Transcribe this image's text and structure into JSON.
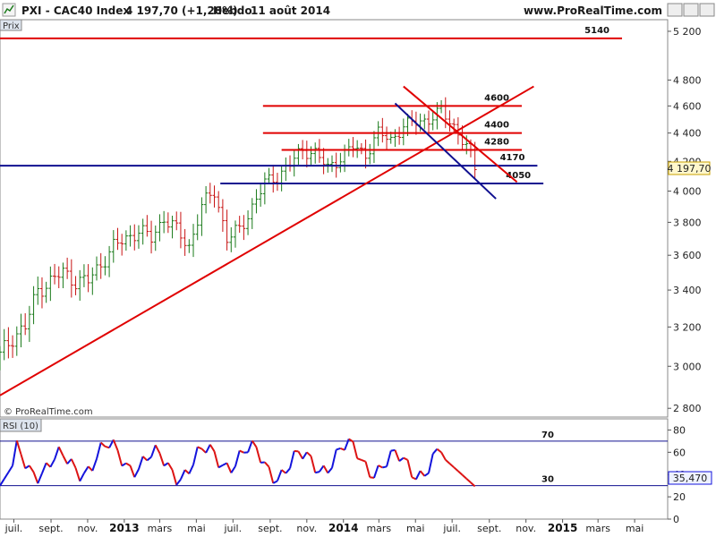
{
  "header": {
    "symbol": "PXI - CAC40 Index",
    "last": "4 197,70 (+1,20%)",
    "period": "Hebdo",
    "date": "11 août 2014",
    "source": "www.ProRealTime.com"
  },
  "watermark": "© ProRealTime.com",
  "price_panel": {
    "label": "Prix",
    "last_value": "4 197,70"
  },
  "rsi_panel": {
    "label": "RSI (10)",
    "last_value": "35,470"
  },
  "colors": {
    "up": "#1a7a1a",
    "down": "#c81414",
    "support": "#e00000",
    "blue": "#101090",
    "rsi_up": "#1414dc",
    "rsi_down": "#dc1414"
  },
  "chart_data": [
    {
      "type": "candlestick",
      "series": [
        {
          "name": "PXI - CAC40 Index"
        }
      ],
      "y_axis": {
        "ticks": [
          "2 800",
          "3 000",
          "3 200",
          "3 400",
          "3 600",
          "3 800",
          "4 000",
          "4 200",
          "4 400",
          "4 600",
          "4 800",
          "5 200"
        ],
        "scale": "log",
        "range": [
          2760,
          5300
        ]
      },
      "x_axis": {
        "ticks": [
          {
            "label": "juil.",
            "date": "2012-07-01"
          },
          {
            "label": "sept.",
            "date": "2012-09-01"
          },
          {
            "label": "nov.",
            "date": "2012-11-01"
          },
          {
            "label": "2013",
            "date": "2013-01-01",
            "bold": true
          },
          {
            "label": "mars",
            "date": "2013-03-01"
          },
          {
            "label": "mai",
            "date": "2013-05-01"
          },
          {
            "label": "juil.",
            "date": "2013-07-01"
          },
          {
            "label": "sept.",
            "date": "2013-09-01"
          },
          {
            "label": "nov.",
            "date": "2013-11-01"
          },
          {
            "label": "2014",
            "date": "2014-01-01",
            "bold": true
          },
          {
            "label": "mars",
            "date": "2014-03-01"
          },
          {
            "label": "mai",
            "date": "2014-05-01"
          },
          {
            "label": "juil.",
            "date": "2014-07-01"
          },
          {
            "label": "sept.",
            "date": "2014-09-01"
          },
          {
            "label": "nov.",
            "date": "2014-11-01"
          },
          {
            "label": "2015",
            "date": "2015-01-01",
            "bold": true
          },
          {
            "label": "mars",
            "date": "2015-03-01"
          },
          {
            "label": "mai",
            "date": "2015-05-01"
          }
        ],
        "range": [
          "2012-06-08",
          "2015-06-25"
        ]
      },
      "weekly_close_approx": [
        [
          "2012-06-08",
          3050
        ],
        [
          "2012-06-29",
          3150
        ],
        [
          "2012-07-20",
          3200
        ],
        [
          "2012-08-10",
          3400
        ],
        [
          "2012-08-31",
          3450
        ],
        [
          "2012-09-21",
          3500
        ],
        [
          "2012-10-12",
          3450
        ],
        [
          "2012-11-02",
          3450
        ],
        [
          "2012-11-23",
          3550
        ],
        [
          "2012-12-14",
          3650
        ],
        [
          "2013-01-04",
          3700
        ],
        [
          "2013-01-25",
          3750
        ],
        [
          "2013-02-15",
          3700
        ],
        [
          "2013-03-08",
          3830
        ],
        [
          "2013-03-29",
          3750
        ],
        [
          "2013-04-19",
          3650
        ],
        [
          "2013-05-10",
          3900
        ],
        [
          "2013-05-31",
          4000
        ],
        [
          "2013-06-21",
          3700
        ],
        [
          "2013-07-12",
          3750
        ],
        [
          "2013-08-02",
          3900
        ],
        [
          "2013-08-23",
          4050
        ],
        [
          "2013-09-13",
          4100
        ],
        [
          "2013-10-04",
          4180
        ],
        [
          "2013-10-25",
          4280
        ],
        [
          "2013-11-15",
          4260
        ],
        [
          "2013-12-06",
          4150
        ],
        [
          "2013-12-27",
          4230
        ],
        [
          "2014-01-17",
          4300
        ],
        [
          "2014-02-07",
          4250
        ],
        [
          "2014-02-28",
          4400
        ],
        [
          "2014-03-21",
          4350
        ],
        [
          "2014-04-11",
          4450
        ],
        [
          "2014-05-02",
          4480
        ],
        [
          "2014-05-23",
          4500
        ],
        [
          "2014-06-13",
          4560
        ],
        [
          "2014-07-04",
          4450
        ],
        [
          "2014-07-25",
          4300
        ],
        [
          "2014-08-08",
          4150
        ],
        [
          "2014-08-11",
          4197.7
        ]
      ],
      "levels": [
        {
          "label": "5140",
          "value": 5140,
          "color": "red"
        },
        {
          "label": "4600",
          "value": 4600,
          "color": "red"
        },
        {
          "label": "4400",
          "value": 4400,
          "color": "red"
        },
        {
          "label": "4280",
          "value": 4280,
          "color": "red"
        },
        {
          "label": "4170",
          "value": 4170,
          "color": "blue"
        },
        {
          "label": "4050",
          "value": 4050,
          "color": "blue"
        }
      ],
      "trendlines": [
        {
          "name": "rising support",
          "from": [
            "2012-06-08",
            2860
          ],
          "to": [
            "2014-11-14",
            4750
          ],
          "color": "red"
        },
        {
          "name": "falling resistance",
          "from": [
            "2014-04-11",
            4750
          ],
          "to": [
            "2014-10-17",
            4060
          ],
          "color": "red"
        },
        {
          "name": "falling channel",
          "from": [
            "2014-03-28",
            4620
          ],
          "to": [
            "2014-09-12",
            3950
          ],
          "color": "blue"
        }
      ]
    },
    {
      "type": "line",
      "title": "RSI (10)",
      "y_axis": {
        "ticks": [
          0,
          20,
          30,
          40,
          60,
          70,
          80
        ],
        "range": [
          0,
          90
        ]
      },
      "levels": [
        {
          "label": "70",
          "value": 70
        },
        {
          "label": "30",
          "value": 30
        }
      ],
      "last_value": 35.47
    }
  ]
}
